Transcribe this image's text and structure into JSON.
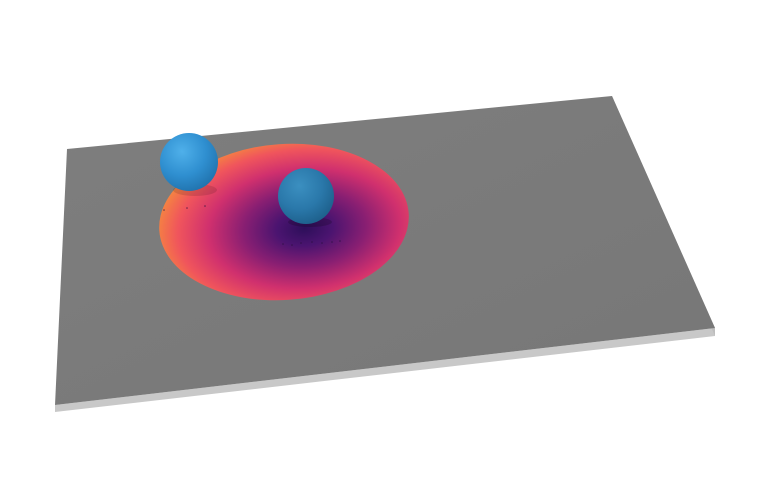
{
  "scene": {
    "background_color": "#ffffff",
    "plane": {
      "name": "ground-plane",
      "top_color": "#7a7a7a",
      "edge_color": "#c9c9c9"
    },
    "heatmap": {
      "name": "heatmap-patch",
      "colormap": "inferno-like",
      "stops": [
        "#2d0f5a",
        "#6a1b6f",
        "#c02a73",
        "#ee4e63",
        "#f58a3a"
      ]
    },
    "spheres": [
      {
        "name": "sphere-1",
        "color": "#2f8fd0"
      },
      {
        "name": "sphere-2",
        "color": "#2f8fd0"
      }
    ]
  }
}
